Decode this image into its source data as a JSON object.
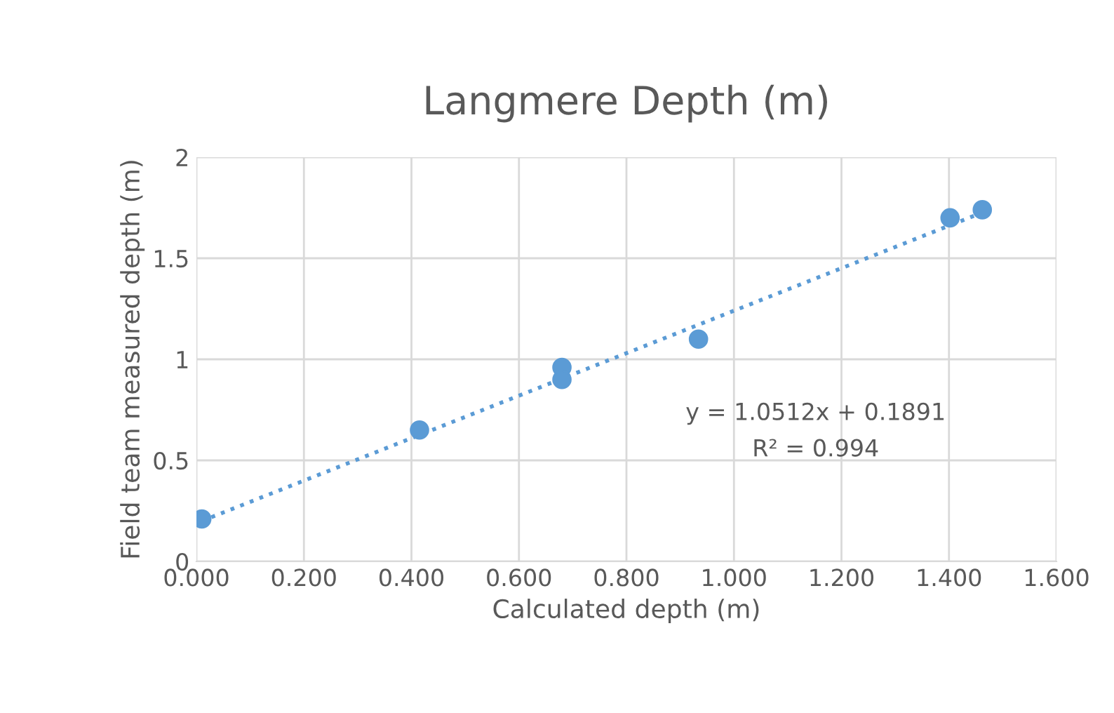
{
  "chart_data": {
    "type": "scatter",
    "title": "Langmere Depth (m)",
    "xlabel": "Calculated depth (m)",
    "ylabel": "Field team measured depth (m)",
    "xlim": [
      0,
      1.6
    ],
    "ylim": [
      0,
      2
    ],
    "xticks": [
      {
        "value": 0,
        "label": "0.000"
      },
      {
        "value": 0.2,
        "label": "0.200"
      },
      {
        "value": 0.4,
        "label": "0.400"
      },
      {
        "value": 0.6,
        "label": "0.600"
      },
      {
        "value": 0.8,
        "label": "0.800"
      },
      {
        "value": 1,
        "label": "1.000"
      },
      {
        "value": 1.2,
        "label": "1.200"
      },
      {
        "value": 1.4,
        "label": "1.400"
      },
      {
        "value": 1.6,
        "label": "1.600"
      }
    ],
    "yticks": [
      0,
      0.5,
      1,
      1.5,
      2
    ],
    "grid": true,
    "series": [
      {
        "marker": "circle",
        "color": "#5b9bd5",
        "x": [
          0.01,
          0.415,
          0.68,
          0.68,
          0.934,
          1.402,
          1.462
        ],
        "values": [
          0.21,
          0.65,
          0.96,
          0.9,
          1.1,
          1.7,
          1.74
        ]
      },
      {
        "type": "line",
        "marker": "none",
        "color": "#5b9bd5",
        "line_style": "dotted",
        "x": [
          0.01,
          1.462
        ],
        "values": [
          0.2,
          1.726
        ]
      }
    ],
    "annotations": [
      "y = 1.0512x + 0.1891",
      "R² = 0.994"
    ]
  }
}
